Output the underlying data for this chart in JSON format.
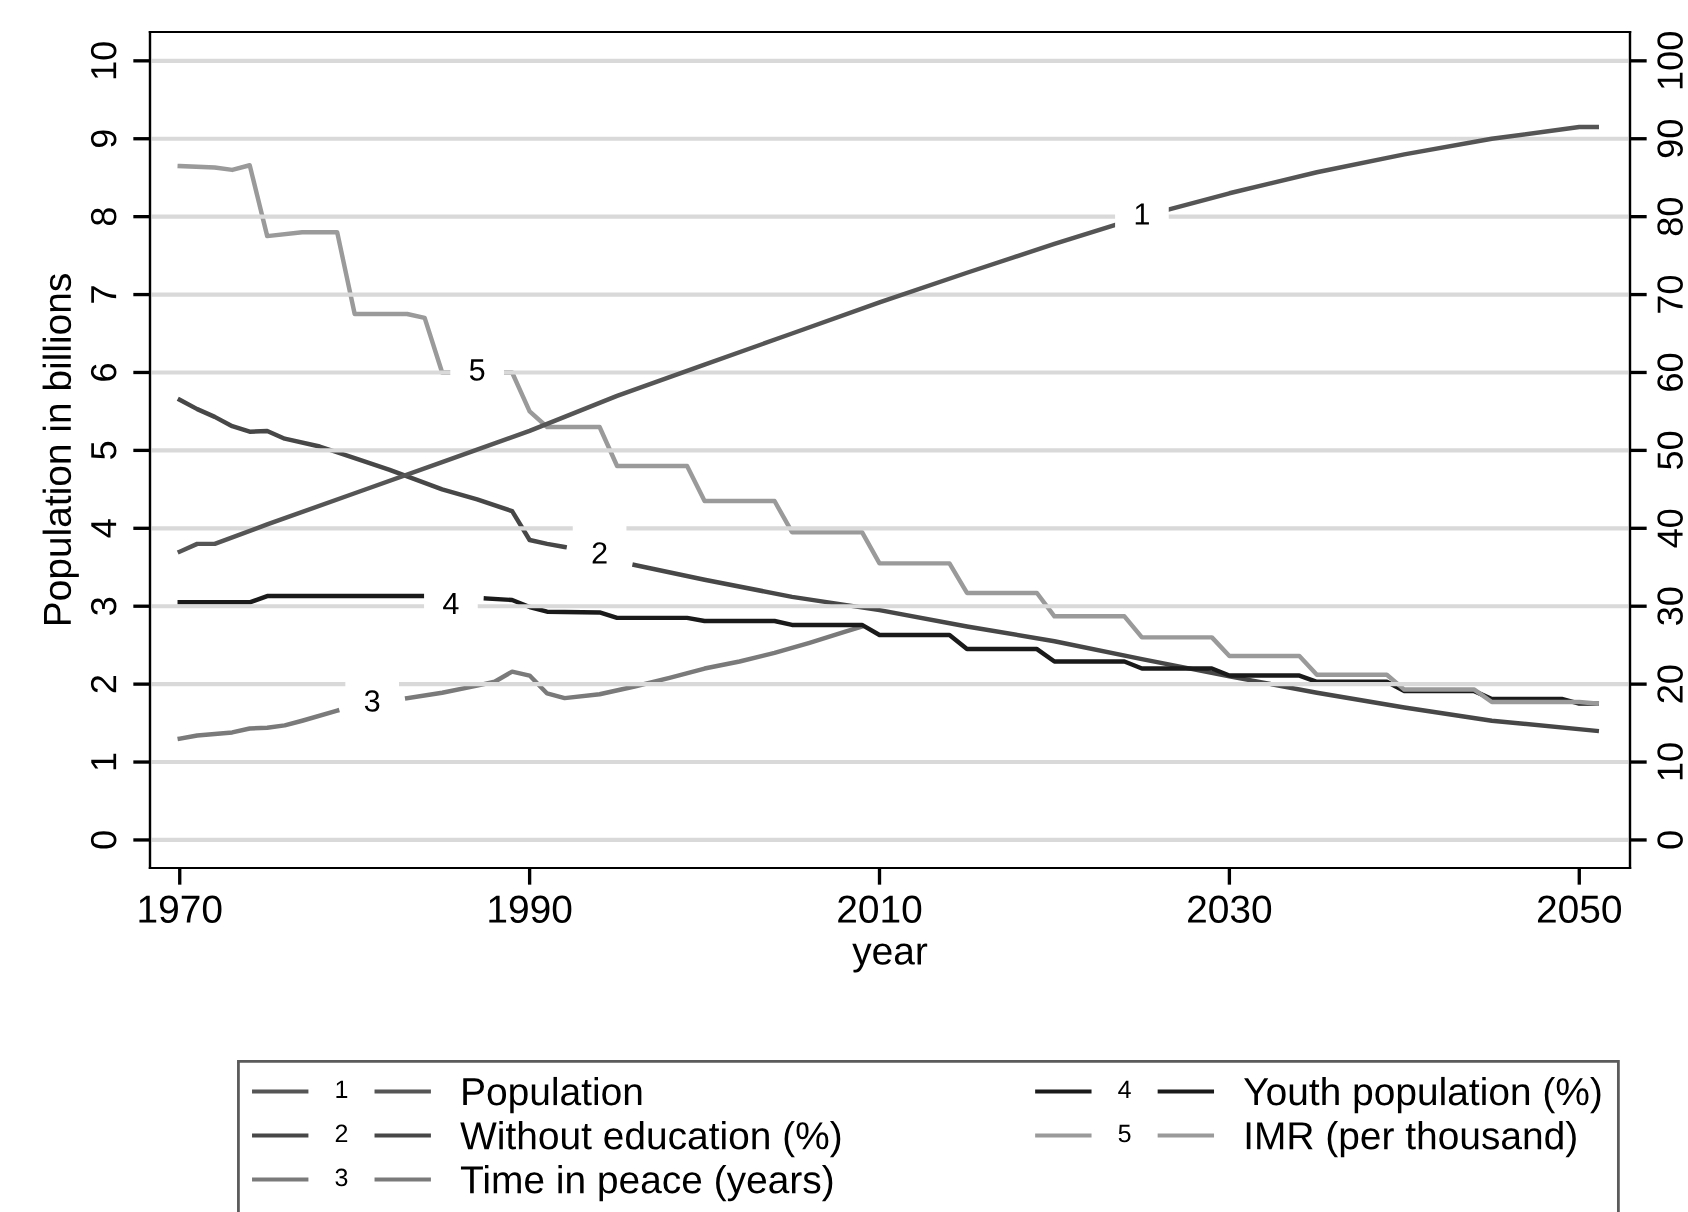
{
  "chart_data": {
    "type": "line",
    "xlabel": "year",
    "ylabel": "Population in billions",
    "xlim": [
      1968.3,
      2052.9
    ],
    "xticks": [
      1970,
      1990,
      2010,
      2030,
      2050
    ],
    "ylim": [
      -0.36,
      10.37
    ],
    "yticks": [
      0,
      1,
      2,
      3,
      4,
      5,
      6,
      7,
      8,
      9,
      10
    ],
    "y2lim": [
      -3.6,
      103.7
    ],
    "y2ticks": [
      0,
      10,
      20,
      30,
      40,
      50,
      60,
      70,
      80,
      90,
      100
    ],
    "grid": "y",
    "legend": "bottom",
    "line_style": "solid",
    "marker": "none",
    "series": [
      {
        "name": "Population",
        "color": "#555555",
        "x": [
          1970,
          1971,
          1972,
          1975,
          1980,
          1985,
          1990,
          1995,
          2000,
          2005,
          2010,
          2015,
          2020,
          2025,
          2030,
          2035,
          2040,
          2045,
          2050,
          2051
        ],
        "values": [
          3.7,
          3.8,
          3.8,
          4.05,
          4.45,
          4.85,
          5.25,
          5.7,
          6.1,
          6.5,
          6.9,
          7.28,
          7.65,
          8.0,
          8.3,
          8.57,
          8.8,
          9.0,
          9.15,
          9.15
        ]
      },
      {
        "name": "Without education (%)",
        "color": "#474747",
        "axis": "y2",
        "x": [
          1970,
          1971,
          1972,
          1973,
          1974,
          1975,
          1976,
          1978,
          1980,
          1982,
          1985,
          1987,
          1989,
          1990,
          1991,
          1992,
          1994,
          1996,
          2000,
          2005,
          2010,
          2015,
          2020,
          2025,
          2030,
          2035,
          2040,
          2045,
          2051
        ],
        "values": [
          56.5,
          55.3,
          54.3,
          53.1,
          52.4,
          52.5,
          51.5,
          50.5,
          49,
          47.5,
          45,
          43.7,
          42.2,
          38.5,
          38,
          37.6,
          null,
          35.3,
          33.4,
          31.2,
          29.5,
          27.4,
          25.5,
          23.2,
          21,
          18.9,
          17,
          15.3,
          14
        ]
      },
      {
        "name": "Time in peace (years)",
        "color": "#7a7a7a",
        "axis": "y2",
        "x": [
          1970,
          1971,
          1972,
          1973,
          1974,
          1975,
          1976,
          1977,
          1979,
          1981,
          1983,
          1985,
          1987,
          1988,
          1989,
          1990,
          1991,
          1992,
          1994,
          1996,
          1998,
          2000,
          2002,
          2004,
          2006,
          2008,
          2009
        ],
        "values": [
          13,
          13.4,
          13.6,
          13.8,
          14.3,
          14.4,
          14.7,
          15.3,
          16.6,
          null,
          18.2,
          18.9,
          19.8,
          20.3,
          21.6,
          21.1,
          18.8,
          18.2,
          18.7,
          19.7,
          20.8,
          22,
          22.9,
          24,
          25.3,
          26.7,
          27.4
        ]
      },
      {
        "name": "Youth population (%)",
        "color": "#1a1a1a",
        "axis": "y2",
        "x": [
          1970,
          1974,
          1975,
          1984,
          1985.5,
          1987.5,
          1989,
          1990,
          1991,
          1994,
          1995,
          1999,
          2000,
          2004,
          2005,
          2009,
          2010,
          2014,
          2015,
          2019,
          2020,
          2024,
          2025,
          2029,
          2030,
          2034,
          2035,
          2039,
          2040,
          2044,
          2045,
          2049,
          2050,
          2051
        ],
        "values": [
          30.5,
          30.5,
          31.3,
          31.3,
          null,
          31,
          30.8,
          29.9,
          29.3,
          29.2,
          28.5,
          28.5,
          28.1,
          28.1,
          27.6,
          27.6,
          26.3,
          26.3,
          24.5,
          24.5,
          22.9,
          22.9,
          22,
          22,
          21.1,
          21.1,
          20.3,
          20.3,
          19.1,
          19.1,
          18.1,
          18.1,
          17.5,
          17.5
        ]
      },
      {
        "name": "IMR (per thousand)",
        "color": "#9a9a9a",
        "axis": "y2",
        "x": [
          1970,
          1972,
          1973,
          1974,
          1975,
          1977,
          1979,
          1980,
          1983,
          1984,
          1985,
          1989,
          1990,
          1991,
          1994,
          1995,
          1999,
          2000,
          2004,
          2005,
          2009,
          2010,
          2014,
          2015,
          2019,
          2020,
          2024,
          2025,
          2029,
          2030,
          2034,
          2035,
          2039,
          2040,
          2044,
          2045,
          2050,
          2051
        ],
        "values": [
          86.5,
          86.3,
          86,
          86.6,
          77.5,
          78,
          78,
          67.5,
          67.5,
          67,
          60,
          60,
          55,
          53,
          53,
          48,
          48,
          43.5,
          43.5,
          39.5,
          39.5,
          35.5,
          35.5,
          31.7,
          31.7,
          28.7,
          28.7,
          26,
          26,
          23.6,
          23.6,
          21.2,
          21.2,
          19.3,
          19.3,
          17.7,
          17.7,
          17.5
        ]
      }
    ],
    "annotations": [
      {
        "text": "1",
        "x": 2025,
        "y": 8.0
      },
      {
        "text": "2",
        "x": 1994,
        "y": 3.65
      },
      {
        "text": "3",
        "x": 1981,
        "y": 1.75
      },
      {
        "text": "4",
        "x": 1985.5,
        "y": 3.0
      },
      {
        "text": "5",
        "x": 1987,
        "y": 6.0
      }
    ]
  }
}
